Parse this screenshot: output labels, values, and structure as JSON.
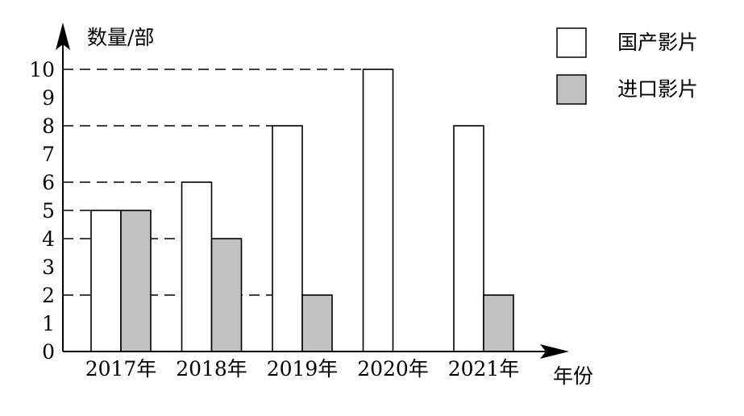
{
  "chart_data": {
    "type": "bar",
    "ylabel": "数量/部",
    "xlabel": "年份",
    "categories": [
      "2017年",
      "2018年",
      "2019年",
      "2020年",
      "2021年"
    ],
    "series": [
      {
        "name": "国产影片",
        "values": [
          5,
          6,
          8,
          10,
          8
        ],
        "color": "#ffffff"
      },
      {
        "name": "进口影片",
        "values": [
          5,
          4,
          2,
          0,
          2
        ],
        "color": "#c0c0c0"
      }
    ],
    "yticks": [
      0,
      1,
      2,
      3,
      4,
      5,
      6,
      7,
      8,
      9,
      10
    ],
    "ylim": [
      0,
      10
    ],
    "guide_levels": [
      10,
      8,
      6,
      5,
      4,
      2
    ],
    "legend_position": "top-right",
    "grid": false
  }
}
